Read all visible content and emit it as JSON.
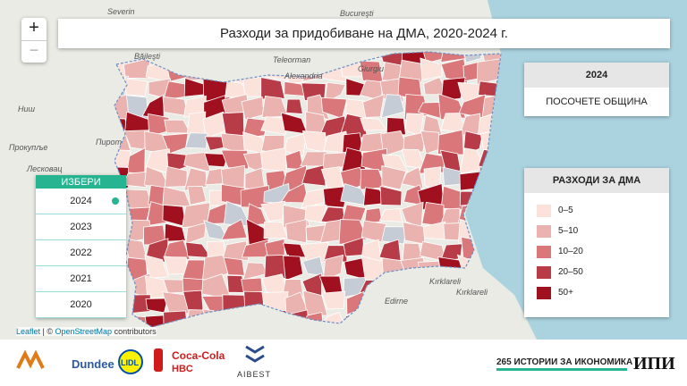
{
  "header": {
    "title": "Разходи за придобиване на ДМА, 2020-2024 г."
  },
  "zoom": {
    "in": "+",
    "out": "−"
  },
  "info_panel": {
    "year": "2024",
    "prompt": "ПОСОЧЕТЕ ОБЩИНА"
  },
  "legend": {
    "title": "РАЗХОДИ ЗА ДМА",
    "items": [
      {
        "label": "0–5",
        "color": "#fbe3dc"
      },
      {
        "label": "5–10",
        "color": "#eab3b0"
      },
      {
        "label": "10–20",
        "color": "#d9777a"
      },
      {
        "label": "20–50",
        "color": "#b83c47"
      },
      {
        "label": "50+",
        "color": "#a0101e"
      }
    ]
  },
  "selector": {
    "title": "ИЗБЕРИ",
    "years": [
      "2024",
      "2023",
      "2022",
      "2021",
      "2020"
    ]
  },
  "attribution": {
    "leaflet": "Leaflet",
    "osm": "OpenStreetMap",
    "rest": "contributors"
  },
  "map_labels": [
    "Severin",
    "Bucureşti",
    "Băileşti",
    "Teleorman",
    "Alexandria",
    "Giurgiu",
    "Пирот",
    "Ниш",
    "Прокупље",
    "Лесковац",
    "Kırklareli",
    "Edirne",
    "Kırklareli"
  ],
  "footer": {
    "series": "265 ИСТОРИИ ЗА ИКОНОМИКА",
    "logo": "ИПИ",
    "sponsors": [
      "Dundee",
      "LIDL",
      "Coca-Cola",
      "HBC",
      "AIBEST"
    ]
  }
}
